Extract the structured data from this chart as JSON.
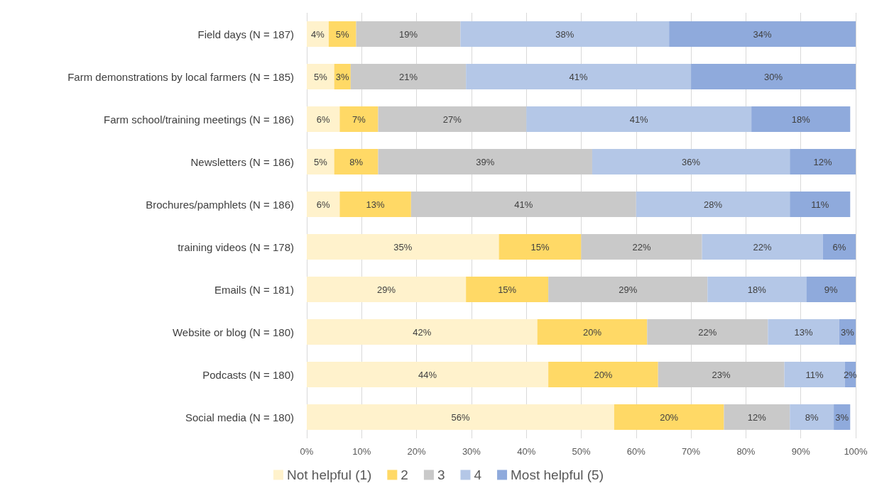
{
  "chart_data": {
    "type": "bar",
    "orientation": "horizontal",
    "stacked": true,
    "categories": [
      "Field days (N = 187)",
      "Farm demonstrations by local farmers (N = 185)",
      "Farm school/training meetings (N = 186)",
      "Newsletters (N = 186)",
      "Brochures/pamphlets (N = 186)",
      "training videos (N = 178)",
      "Emails (N = 181)",
      "Website or blog (N = 180)",
      "Podcasts (N = 180)",
      "Social media (N = 180)"
    ],
    "series": [
      {
        "name": "Not helpful (1)",
        "color": "#fff2cc",
        "values": [
          4,
          5,
          6,
          5,
          6,
          35,
          29,
          42,
          44,
          56
        ],
        "value_labels": [
          "4%",
          "5%",
          "6%",
          "5%",
          "6%",
          "35%",
          "29%",
          "42%",
          "44%",
          "56%"
        ]
      },
      {
        "name": "2",
        "color": "#ffd966",
        "values": [
          5,
          3,
          7,
          8,
          13,
          15,
          15,
          20,
          20,
          20
        ],
        "value_labels": [
          "5%",
          "3%",
          "7%",
          "8%",
          "13%",
          "15%",
          "15%",
          "20%",
          "20%",
          "20%"
        ]
      },
      {
        "name": "3",
        "color": "#c9c9c9",
        "values": [
          19,
          21,
          27,
          39,
          41,
          22,
          29,
          22,
          23,
          12
        ],
        "value_labels": [
          "19%",
          "21%",
          "27%",
          "39%",
          "41%",
          "22%",
          "29%",
          "22%",
          "23%",
          "12%"
        ]
      },
      {
        "name": "4",
        "color": "#b4c7e7",
        "values": [
          38,
          41,
          41,
          36,
          28,
          22,
          18,
          13,
          11,
          8
        ],
        "value_labels": [
          "38%",
          "41%",
          "41%",
          "36%",
          "28%",
          "22%",
          "18%",
          "13%",
          "11%",
          "8%"
        ]
      },
      {
        "name": "Most helpful (5)",
        "color": "#8faadc",
        "values": [
          34,
          30,
          18,
          12,
          11,
          6,
          9,
          3,
          2,
          3
        ],
        "value_labels": [
          "34%",
          "30%",
          "18%",
          "12%",
          "11%",
          "6%",
          "9%",
          "3%",
          "2%",
          "3%"
        ]
      }
    ],
    "xlim": [
      0,
      100
    ],
    "xticks": [
      {
        "value": 0,
        "label": "0%"
      },
      {
        "value": 10,
        "label": "10%"
      },
      {
        "value": 20,
        "label": "20%"
      },
      {
        "value": 30,
        "label": "30%"
      },
      {
        "value": 40,
        "label": "40%"
      },
      {
        "value": 50,
        "label": "50%"
      },
      {
        "value": 60,
        "label": "60%"
      },
      {
        "value": 70,
        "label": "70%"
      },
      {
        "value": 80,
        "label": "80%"
      },
      {
        "value": 90,
        "label": "90%"
      },
      {
        "value": 100,
        "label": "100%"
      }
    ],
    "grid": "x",
    "legend": "bottom"
  }
}
